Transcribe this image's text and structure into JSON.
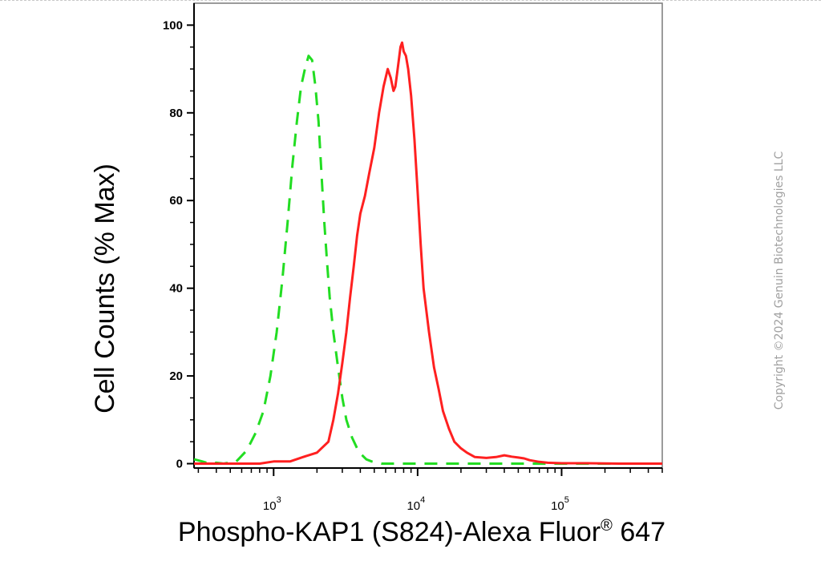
{
  "chart_data": {
    "type": "line",
    "xlabel_main": "Phospho-KAP1 (S824)-Alexa Fluor",
    "xlabel_sup": "®",
    "xlabel_end": " 647",
    "ylabel": "Cell Counts (% Max)",
    "x_scale": "log",
    "xlim": [
      280,
      500000
    ],
    "ylim": [
      -1,
      105
    ],
    "yticks": [
      0,
      20,
      40,
      60,
      80,
      100
    ],
    "xticks": [
      {
        "base": "10",
        "exp": "3",
        "value": 1000
      },
      {
        "base": "10",
        "exp": "4",
        "value": 10000
      },
      {
        "base": "10",
        "exp": "5",
        "value": 100000
      }
    ],
    "grid": false,
    "legend": "none",
    "series": [
      {
        "color": "#22dd22",
        "style": "dashed",
        "x": [
          280,
          320,
          360,
          400,
          450,
          550,
          650,
          750,
          850,
          950,
          1050,
          1150,
          1250,
          1350,
          1450,
          1550,
          1650,
          1750,
          1850,
          1950,
          2050,
          2150,
          2250,
          2350,
          2450,
          2600,
          2800,
          3000,
          3200,
          3500,
          3800,
          4100,
          4400,
          4800,
          5200,
          5600,
          6000,
          7000,
          10000,
          20000,
          50000,
          100000,
          300000,
          500000
        ],
        "y": [
          1,
          0.5,
          0,
          0.2,
          0,
          0.5,
          3,
          7,
          12,
          20,
          30,
          42,
          55,
          68,
          78,
          86,
          90,
          93,
          92,
          86,
          78,
          66,
          55,
          46,
          38,
          30,
          22,
          15,
          10,
          6,
          3.5,
          2,
          1,
          0.5,
          0.2,
          0,
          0,
          0,
          0,
          0,
          0,
          0,
          0,
          0
        ]
      },
      {
        "color": "#ff2020",
        "style": "solid",
        "x": [
          280,
          500,
          800,
          1000,
          1300,
          1600,
          2000,
          2400,
          2600,
          2800,
          3000,
          3200,
          3400,
          3600,
          3800,
          4000,
          4300,
          4600,
          5000,
          5400,
          5800,
          6200,
          6500,
          6800,
          7000,
          7200,
          7400,
          7600,
          7800,
          8000,
          8300,
          8600,
          9000,
          9500,
          10000,
          10500,
          11000,
          12000,
          13000,
          14000,
          15000,
          16500,
          18000,
          20000,
          22000,
          25000,
          30000,
          35000,
          40000,
          45000,
          50000,
          55000,
          60000,
          70000,
          80000,
          100000,
          150000,
          250000,
          500000
        ],
        "y": [
          0,
          0,
          0,
          0.5,
          0.5,
          1.5,
          2.5,
          5,
          10,
          16,
          23,
          30,
          38,
          45,
          52,
          57,
          61,
          66,
          72,
          80,
          86,
          90,
          88,
          85,
          86,
          89,
          92,
          95,
          96,
          94,
          93,
          90,
          84,
          74,
          62,
          50,
          40,
          30,
          22,
          17,
          12,
          8,
          5,
          3.5,
          2.5,
          1.5,
          1.3,
          1.5,
          1.9,
          1.6,
          1.4,
          1.2,
          0.8,
          0.4,
          0.2,
          0.1,
          0.1,
          0,
          0
        ]
      }
    ]
  },
  "watermark": "Copyright ©2024 Genuin Biotechnologies LLC"
}
